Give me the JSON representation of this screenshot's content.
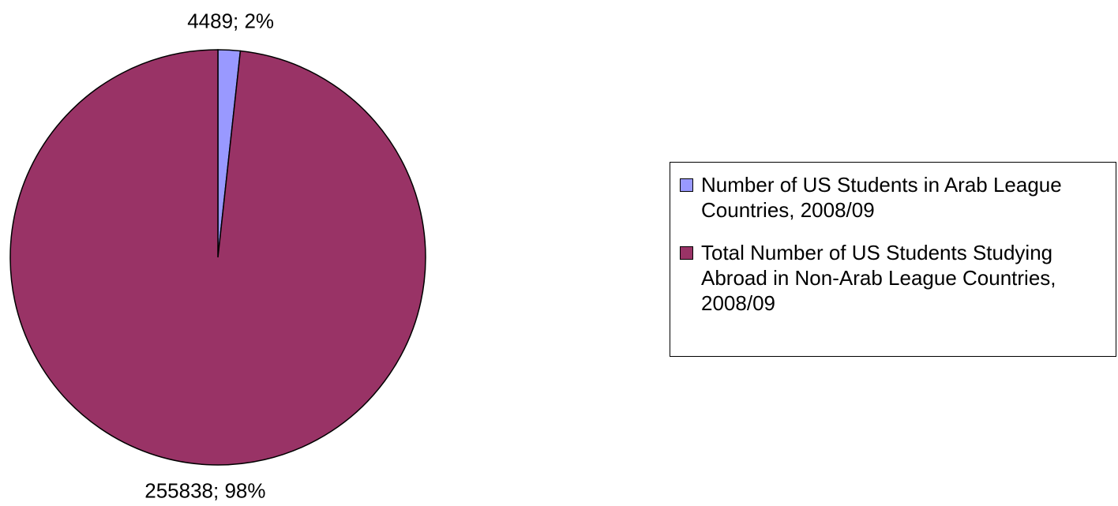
{
  "chart_data": {
    "type": "pie",
    "categories": [
      "Number of US Students in Arab League Countries, 2008/09",
      "Total Number of US Students Studying Abroad in Non-Arab League Countries, 2008/09"
    ],
    "values": [
      4489,
      255838
    ],
    "value_labels": [
      "4489; 2%",
      "255838; 98%"
    ],
    "colors": [
      "#9999ff",
      "#993366"
    ],
    "legend": "right"
  }
}
